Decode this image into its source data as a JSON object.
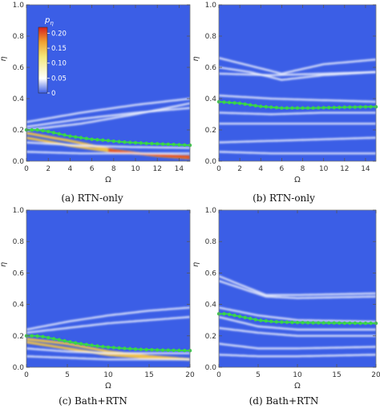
{
  "captions": [
    "(a) RTN-only",
    "(b) RTN-only",
    "(c) Bath+RTN",
    "(d) Bath+RTN"
  ],
  "colorbar": {
    "title": "p_η",
    "title_main": "p",
    "title_sub": "η",
    "ticks": [
      "0.20",
      "0.15",
      "0.10",
      "0.05",
      "0"
    ],
    "tick_values": [
      0.2,
      0.15,
      0.1,
      0.05,
      0.0
    ],
    "range": [
      0,
      0.22
    ],
    "colors": [
      "#3b5ee6",
      "#ffffff",
      "#f4e87a",
      "#f0a030",
      "#d62020"
    ]
  },
  "colors": {
    "background": "#3b5ee6",
    "green_line": "#39d44a",
    "white_streak": "#ffffff",
    "hot_streak": "#f5c542"
  },
  "chart_data": [
    {
      "type": "heatmap",
      "caption": "(a) RTN-only",
      "xlabel": "Ω",
      "ylabel": "η",
      "xlim": [
        0,
        15
      ],
      "ylim": [
        0,
        1.0
      ],
      "xticks": [
        "0",
        "2",
        "4",
        "6",
        "8",
        "10",
        "12",
        "14"
      ],
      "xtick_values": [
        0,
        2,
        4,
        6,
        8,
        10,
        12,
        14
      ],
      "yticks": [
        "0.0",
        "0.2",
        "0.4",
        "0.6",
        "0.8",
        "1.0"
      ],
      "ytick_values": [
        0.0,
        0.2,
        0.4,
        0.6,
        0.8,
        1.0
      ],
      "colorbar": true,
      "green_series": {
        "x": [
          0,
          1,
          2,
          3,
          4,
          5,
          6,
          7,
          8,
          9,
          10,
          11,
          12,
          13,
          14,
          15
        ],
        "y": [
          0.2,
          0.2,
          0.19,
          0.175,
          0.16,
          0.15,
          0.14,
          0.135,
          0.128,
          0.122,
          0.118,
          0.114,
          0.111,
          0.108,
          0.105,
          0.102
        ]
      },
      "streaks": [
        {
          "x": [
            0,
            4,
            8,
            12,
            15
          ],
          "y": [
            0.18,
            0.13,
            0.07,
            0.035,
            0.02
          ],
          "hot": true
        },
        {
          "x": [
            0,
            4,
            8,
            12,
            15
          ],
          "y": [
            0.15,
            0.1,
            0.06,
            0.04,
            0.03
          ],
          "hot": true
        },
        {
          "x": [
            0,
            5,
            10,
            15
          ],
          "y": [
            0.12,
            0.1,
            0.09,
            0.085
          ],
          "hot": false
        },
        {
          "x": [
            0,
            5,
            10,
            15
          ],
          "y": [
            0.22,
            0.27,
            0.31,
            0.34
          ],
          "hot": false
        },
        {
          "x": [
            0,
            5,
            10,
            15
          ],
          "y": [
            0.25,
            0.31,
            0.36,
            0.4
          ],
          "hot": false
        },
        {
          "x": [
            0,
            5,
            10,
            15
          ],
          "y": [
            0.06,
            0.05,
            0.05,
            0.05
          ],
          "hot": false
        },
        {
          "x": [
            0,
            5,
            10,
            15
          ],
          "y": [
            0.2,
            0.24,
            0.3,
            0.37
          ],
          "hot": false
        }
      ]
    },
    {
      "type": "heatmap",
      "caption": "(b) RTN-only",
      "xlabel": "Ω",
      "ylabel": "η",
      "xlim": [
        0,
        15
      ],
      "ylim": [
        0,
        1.0
      ],
      "xticks": [
        "0",
        "2",
        "4",
        "6",
        "8",
        "10",
        "12",
        "14"
      ],
      "xtick_values": [
        0,
        2,
        4,
        6,
        8,
        10,
        12,
        14
      ],
      "yticks": [
        "0.0",
        "0.2",
        "0.4",
        "0.6",
        "0.8",
        "1.0"
      ],
      "ytick_values": [
        0.0,
        0.2,
        0.4,
        0.6,
        0.8,
        1.0
      ],
      "colorbar": false,
      "green_series": {
        "x": [
          0,
          1,
          2,
          3,
          4,
          5,
          6,
          7,
          8,
          9,
          10,
          11,
          12,
          13,
          14,
          15
        ],
        "y": [
          0.38,
          0.375,
          0.37,
          0.36,
          0.35,
          0.345,
          0.34,
          0.34,
          0.34,
          0.34,
          0.342,
          0.343,
          0.345,
          0.346,
          0.347,
          0.348
        ]
      },
      "streaks": [
        {
          "x": [
            0,
            3,
            6,
            10,
            15
          ],
          "y": [
            0.66,
            0.61,
            0.56,
            0.62,
            0.65
          ],
          "hot": false
        },
        {
          "x": [
            0,
            3,
            6,
            10,
            15
          ],
          "y": [
            0.6,
            0.57,
            0.52,
            0.55,
            0.57
          ],
          "hot": false
        },
        {
          "x": [
            0,
            5,
            10,
            15
          ],
          "y": [
            0.56,
            0.55,
            0.56,
            0.57
          ],
          "hot": false
        },
        {
          "x": [
            0,
            5,
            10,
            15
          ],
          "y": [
            0.31,
            0.3,
            0.31,
            0.31
          ],
          "hot": false
        },
        {
          "x": [
            0,
            5,
            10,
            15
          ],
          "y": [
            0.24,
            0.24,
            0.24,
            0.24
          ],
          "hot": false
        },
        {
          "x": [
            0,
            5,
            10,
            15
          ],
          "y": [
            0.06,
            0.05,
            0.05,
            0.05
          ],
          "hot": false
        },
        {
          "x": [
            0,
            5,
            10,
            15
          ],
          "y": [
            0.12,
            0.13,
            0.14,
            0.15
          ],
          "hot": false
        },
        {
          "x": [
            0,
            5,
            10,
            15
          ],
          "y": [
            0.42,
            0.4,
            0.39,
            0.38
          ],
          "hot": false
        }
      ]
    },
    {
      "type": "heatmap",
      "caption": "(c) Bath+RTN",
      "xlabel": "Ω",
      "ylabel": "η",
      "xlim": [
        0,
        20
      ],
      "ylim": [
        0,
        1.0
      ],
      "xticks": [
        "0",
        "5",
        "10",
        "15",
        "20"
      ],
      "xtick_values": [
        0,
        5,
        10,
        15,
        20
      ],
      "yticks": [
        "0.0",
        "0.2",
        "0.4",
        "0.6",
        "0.8",
        "1.0"
      ],
      "ytick_values": [
        0.0,
        0.2,
        0.4,
        0.6,
        0.8,
        1.0
      ],
      "colorbar": false,
      "green_series": {
        "x": [
          0,
          1,
          2,
          3,
          4,
          5,
          6,
          7,
          8,
          9,
          10,
          11,
          12,
          13,
          14,
          15,
          16,
          17,
          18,
          19,
          20
        ],
        "y": [
          0.2,
          0.2,
          0.195,
          0.185,
          0.175,
          0.165,
          0.155,
          0.147,
          0.14,
          0.133,
          0.128,
          0.124,
          0.12,
          0.117,
          0.114,
          0.112,
          0.11,
          0.109,
          0.108,
          0.107,
          0.106
        ]
      },
      "streaks": [
        {
          "x": [
            0,
            5,
            10,
            15,
            20
          ],
          "y": [
            0.18,
            0.15,
            0.1,
            0.07,
            0.05
          ],
          "hot": true
        },
        {
          "x": [
            0,
            5,
            10,
            15,
            20
          ],
          "y": [
            0.16,
            0.12,
            0.08,
            0.06,
            0.05
          ],
          "hot": true
        },
        {
          "x": [
            0,
            5,
            10,
            15,
            20
          ],
          "y": [
            0.22,
            0.25,
            0.28,
            0.3,
            0.32
          ],
          "hot": false
        },
        {
          "x": [
            0,
            5,
            10,
            15,
            20
          ],
          "y": [
            0.12,
            0.1,
            0.09,
            0.09,
            0.09
          ],
          "hot": false
        },
        {
          "x": [
            0,
            5,
            10,
            15,
            20
          ],
          "y": [
            0.07,
            0.06,
            0.05,
            0.05,
            0.05
          ],
          "hot": false
        },
        {
          "x": [
            0,
            5,
            10,
            15,
            20
          ],
          "y": [
            0.24,
            0.29,
            0.33,
            0.36,
            0.38
          ],
          "hot": false
        }
      ]
    },
    {
      "type": "heatmap",
      "caption": "(d) Bath+RTN",
      "xlabel": "Ω",
      "ylabel": "η",
      "xlim": [
        0,
        20
      ],
      "ylim": [
        0,
        1.0
      ],
      "xticks": [
        "0",
        "5",
        "10",
        "15",
        "20"
      ],
      "xtick_values": [
        0,
        5,
        10,
        15,
        20
      ],
      "yticks": [
        "0.0",
        "0.2",
        "0.4",
        "0.6",
        "0.8",
        "1.0"
      ],
      "ytick_values": [
        0.0,
        0.2,
        0.4,
        0.6,
        0.8,
        1.0
      ],
      "colorbar": false,
      "green_series": {
        "x": [
          0,
          1,
          2,
          3,
          4,
          5,
          6,
          7,
          8,
          9,
          10,
          11,
          12,
          13,
          14,
          15,
          16,
          17,
          18,
          19,
          20
        ],
        "y": [
          0.34,
          0.34,
          0.33,
          0.32,
          0.31,
          0.3,
          0.295,
          0.29,
          0.288,
          0.286,
          0.285,
          0.284,
          0.283,
          0.283,
          0.282,
          0.282,
          0.281,
          0.281,
          0.28,
          0.28,
          0.28
        ]
      },
      "streaks": [
        {
          "x": [
            0,
            3,
            6,
            10,
            20
          ],
          "y": [
            0.58,
            0.52,
            0.46,
            0.46,
            0.47
          ],
          "hot": false
        },
        {
          "x": [
            0,
            3,
            6,
            10,
            20
          ],
          "y": [
            0.55,
            0.5,
            0.45,
            0.44,
            0.45
          ],
          "hot": false
        },
        {
          "x": [
            0,
            5,
            10,
            20
          ],
          "y": [
            0.38,
            0.33,
            0.3,
            0.29
          ],
          "hot": false
        },
        {
          "x": [
            0,
            5,
            10,
            20
          ],
          "y": [
            0.25,
            0.22,
            0.2,
            0.2
          ],
          "hot": false
        },
        {
          "x": [
            0,
            5,
            10,
            20
          ],
          "y": [
            0.15,
            0.12,
            0.12,
            0.13
          ],
          "hot": false
        },
        {
          "x": [
            0,
            5,
            10,
            20
          ],
          "y": [
            0.08,
            0.07,
            0.07,
            0.08
          ],
          "hot": false
        },
        {
          "x": [
            0,
            5,
            10,
            20
          ],
          "y": [
            0.32,
            0.26,
            0.24,
            0.24
          ],
          "hot": false
        }
      ]
    }
  ]
}
